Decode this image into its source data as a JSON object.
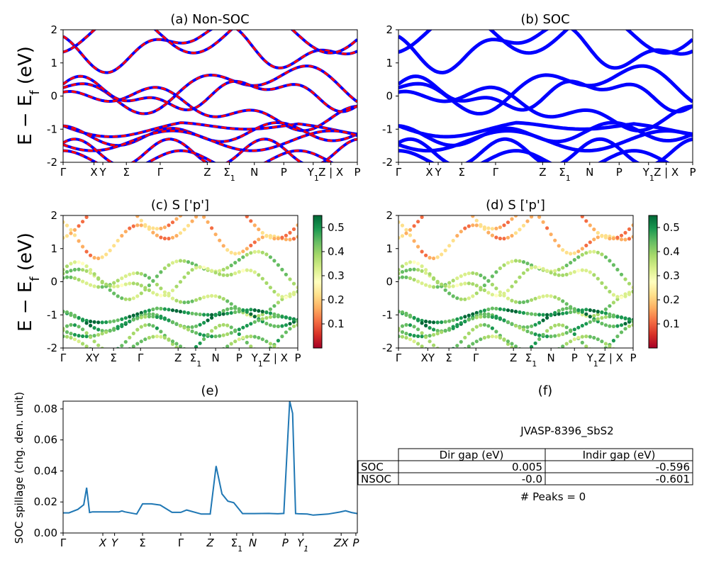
{
  "colors": {
    "nonsoc_primary": "#0000ff",
    "nonsoc_overlay": "#ff0000",
    "soc_band": "#0000ff",
    "spillage_line": "#1f77b4",
    "colormap": [
      "#a50026",
      "#d73027",
      "#f46d43",
      "#fdae61",
      "#fee08b",
      "#ffffbf",
      "#d9ef8b",
      "#a6d96a",
      "#66bd63",
      "#1a9850",
      "#006837"
    ]
  },
  "band_labels": [
    "Γ",
    "X",
    "Y",
    "Σ",
    "Γ",
    "Z",
    "Σ1",
    "N",
    "P",
    "Y1",
    "Z | X",
    "P"
  ],
  "band_label_positions": [
    0,
    0.105,
    0.135,
    0.215,
    0.33,
    0.49,
    0.565,
    0.65,
    0.75,
    0.85,
    0.91,
    1.0
  ],
  "panel_c_labels": [
    "Γ",
    "XY",
    "Σ",
    "Γ",
    "Z",
    "Σ1",
    "N",
    "P",
    "Y1Z | X",
    "P"
  ],
  "panel_c_positions": [
    0,
    0.125,
    0.215,
    0.33,
    0.49,
    0.565,
    0.65,
    0.75,
    0.88,
    1.0
  ],
  "spillage_labels": [
    "Γ",
    "X",
    "Y",
    "Σ",
    "Γ",
    "Z",
    "Σ1",
    "N",
    "P",
    "Y1",
    "ZX",
    "P"
  ],
  "spillage_positions": [
    0,
    0.135,
    0.175,
    0.27,
    0.4,
    0.5,
    0.59,
    0.645,
    0.755,
    0.815,
    0.945,
    0.995
  ],
  "chart_data": [
    {
      "type": "line",
      "panel": "a",
      "title": "(a) Non-SOC",
      "ylabel": "E − E_f (eV)",
      "ylim": [
        -2,
        2
      ],
      "yticks": [
        -2,
        -1,
        0,
        1,
        2
      ],
      "xticklabels": [
        "Γ",
        "X",
        "Y",
        "Σ",
        "Γ",
        "Z",
        "Σ1",
        "N",
        "P",
        "Y1",
        "Z | X",
        "P"
      ],
      "bands_valence_approx": [
        -0.9,
        -1.2,
        -1.6,
        -1.9
      ],
      "bands_conduction_approx": [
        0.2,
        0.0,
        1.0,
        1.5
      ]
    },
    {
      "type": "line",
      "panel": "b",
      "title": "(b) SOC",
      "ylim": [
        -2,
        2
      ],
      "yticks": [
        -2,
        -1,
        0,
        1,
        2
      ],
      "xticklabels": [
        "Γ",
        "X",
        "Y",
        "Σ",
        "Γ",
        "Z",
        "Σ1",
        "N",
        "P",
        "Y1",
        "Z | X",
        "P"
      ]
    },
    {
      "type": "scatter",
      "panel": "c",
      "title": "(c)  S ['p']",
      "ylabel": "E − E_f (eV)",
      "ylim": [
        -2,
        2
      ],
      "yticks": [
        -2,
        -1,
        0,
        1,
        2
      ],
      "colorbar_ticks": [
        0.1,
        0.2,
        0.3,
        0.4,
        0.5
      ],
      "colorbar_range": [
        0.0,
        0.55
      ],
      "xticklabels": [
        "Γ",
        "XY",
        "Σ",
        "Γ",
        "Z",
        "Σ1",
        "N",
        "P",
        "Y1Z | X",
        "P"
      ]
    },
    {
      "type": "scatter",
      "panel": "d",
      "title": "(d) S ['p']",
      "ylim": [
        -2,
        2
      ],
      "yticks": [
        -2,
        -1,
        0,
        1,
        2
      ],
      "colorbar_ticks": [
        0.1,
        0.2,
        0.3,
        0.4,
        0.5
      ],
      "colorbar_range": [
        0.0,
        0.55
      ],
      "xticklabels": [
        "Γ",
        "XY",
        "Σ",
        "Γ",
        "Z",
        "Σ1",
        "N",
        "P",
        "Y1Z | X",
        "P"
      ]
    },
    {
      "type": "line",
      "panel": "e",
      "title": "(e)",
      "ylabel": "SOC spillage (chg. den. unit)",
      "ylim": [
        0,
        0.085
      ],
      "yticks": [
        0.0,
        0.02,
        0.04,
        0.06,
        0.08
      ],
      "xticklabels": [
        "Γ",
        "X",
        "Y",
        "Σ",
        "Γ",
        "Z",
        "Σ1",
        "N",
        "P",
        "Y1",
        "ZX",
        "P"
      ],
      "x": [
        0,
        0.02,
        0.05,
        0.07,
        0.08,
        0.09,
        0.1,
        0.13,
        0.17,
        0.19,
        0.2,
        0.21,
        0.25,
        0.27,
        0.3,
        0.33,
        0.37,
        0.4,
        0.42,
        0.47,
        0.5,
        0.52,
        0.54,
        0.56,
        0.58,
        0.61,
        0.65,
        0.7,
        0.73,
        0.75,
        0.77,
        0.78,
        0.79,
        0.8,
        0.83,
        0.85,
        0.9,
        0.94,
        0.96,
        0.98,
        1.0
      ],
      "values": [
        0.013,
        0.013,
        0.0152,
        0.0182,
        0.0292,
        0.0132,
        0.0136,
        0.0136,
        0.0136,
        0.0136,
        0.0142,
        0.0136,
        0.0122,
        0.0188,
        0.0188,
        0.018,
        0.0133,
        0.0133,
        0.0148,
        0.0122,
        0.0122,
        0.0432,
        0.0252,
        0.0205,
        0.0195,
        0.0125,
        0.0125,
        0.0126,
        0.0124,
        0.0126,
        0.085,
        0.0772,
        0.0125,
        0.0124,
        0.0122,
        0.0115,
        0.0122,
        0.0135,
        0.0143,
        0.0132,
        0.0125
      ]
    }
  ],
  "panel_f": {
    "title": "(f)",
    "material": "JVASP-8396_SbS2",
    "table_headers": [
      "Dir gap (eV)",
      "Indir gap (eV)"
    ],
    "rows": [
      {
        "label": "SOC",
        "dir": "0.005",
        "indir": "-0.596"
      },
      {
        "label": "NSOC",
        "dir": "-0.0",
        "indir": "-0.601"
      }
    ],
    "peaks": "# Peaks = 0"
  }
}
